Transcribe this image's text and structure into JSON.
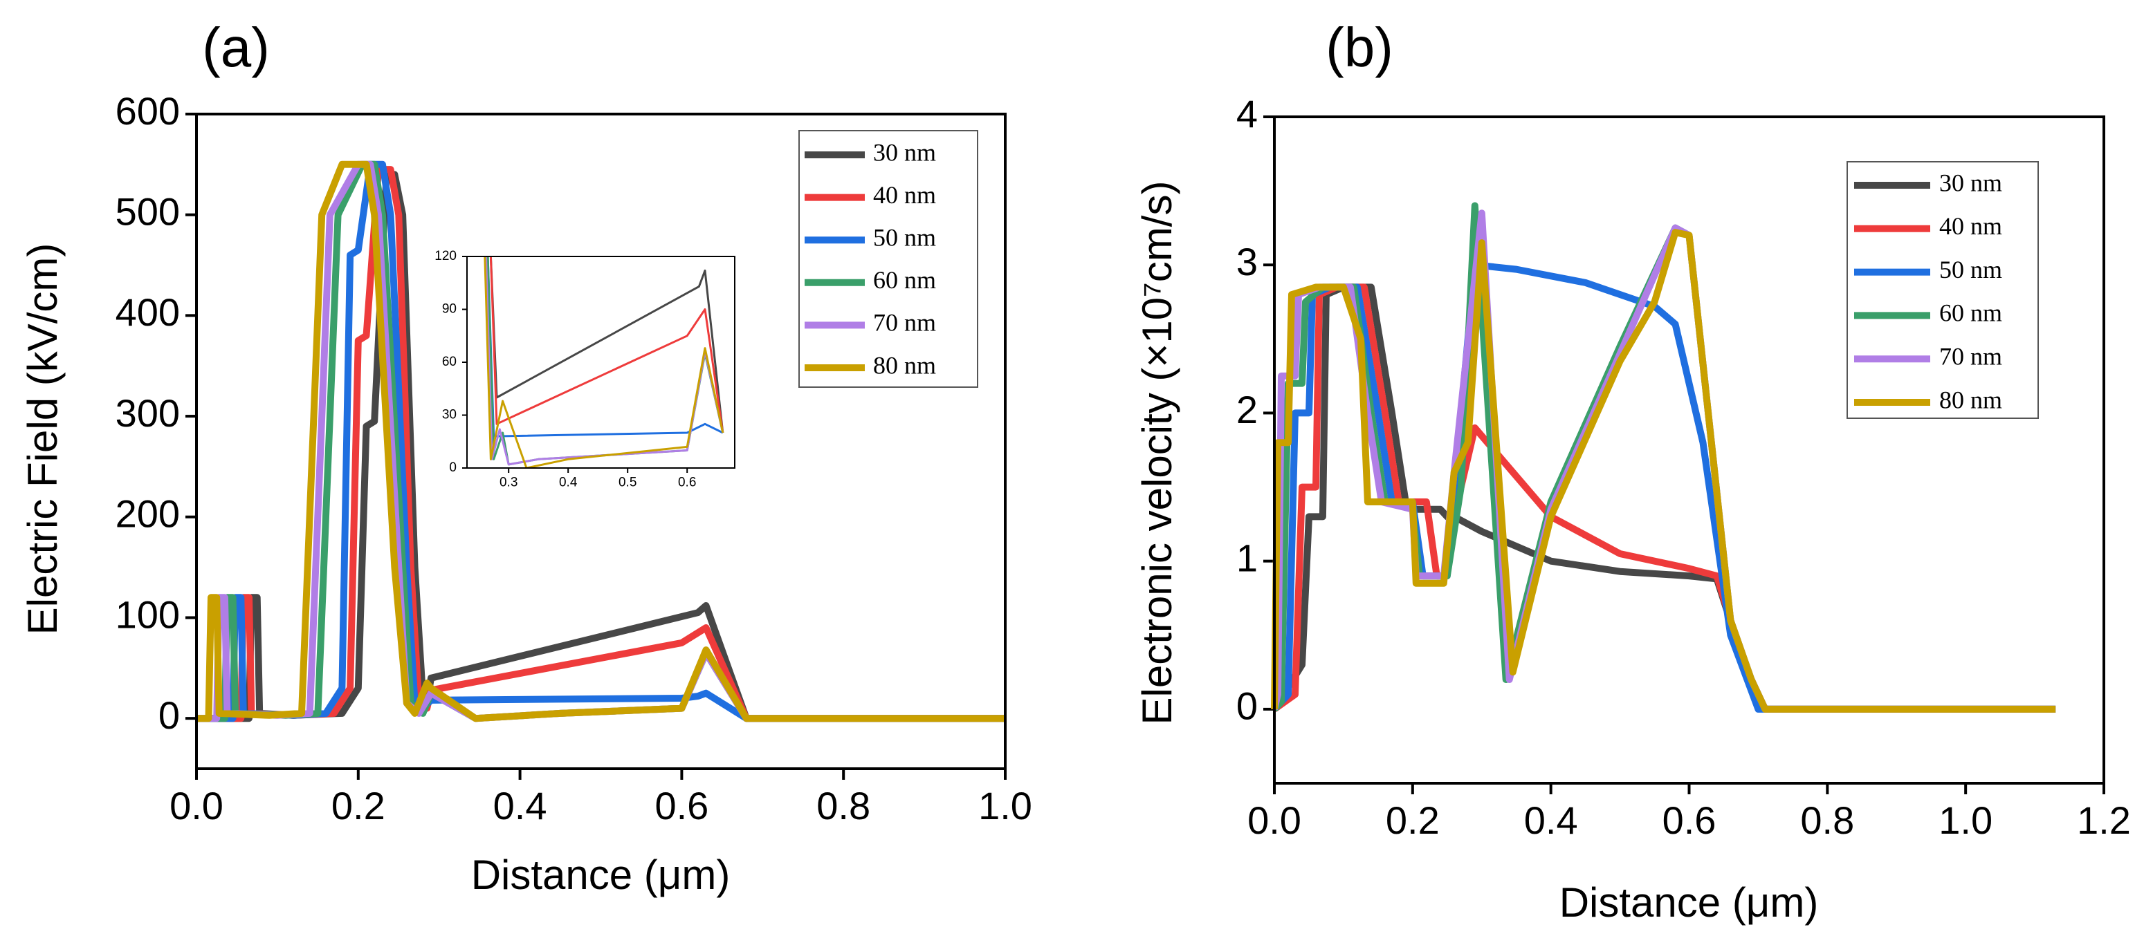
{
  "chart_data": [
    {
      "type": "line",
      "panel_label": "(a)",
      "xlabel": "Distance (μm)",
      "ylabel": "Electric Field (kV/cm)",
      "xlim": [
        0,
        1
      ],
      "ylim": [
        -50,
        600
      ],
      "xticks": [
        {
          "value": 0,
          "label": "0.0"
        },
        0.2,
        0.4,
        0.6,
        0.8,
        {
          "value": 1,
          "label": "1.0"
        }
      ],
      "yticks": [
        0,
        100,
        200,
        300,
        400,
        500,
        600
      ],
      "legend": "upper right",
      "series": [
        {
          "name": "30 nm",
          "color": "#474747",
          "x": [
            0,
            0.065,
            0.068,
            0.075,
            0.078,
            0.12,
            0.18,
            0.2,
            0.21,
            0.22,
            0.235,
            0.245,
            0.255,
            0.27,
            0.28,
            0.285,
            0.29,
            0.62,
            0.63,
            0.68,
            1.0
          ],
          "values": [
            0,
            0,
            120,
            120,
            5,
            3,
            5,
            30,
            290,
            295,
            540,
            540,
            500,
            150,
            20,
            15,
            40,
            105,
            112,
            0,
            0
          ]
        },
        {
          "name": "40 nm",
          "color": "#ee3b3b",
          "x": [
            0,
            0.055,
            0.058,
            0.065,
            0.068,
            0.12,
            0.17,
            0.19,
            0.2,
            0.21,
            0.225,
            0.24,
            0.25,
            0.265,
            0.275,
            0.285,
            0.29,
            0.6,
            0.63,
            0.68,
            1.0
          ],
          "values": [
            0,
            0,
            120,
            120,
            5,
            3,
            5,
            30,
            375,
            380,
            545,
            545,
            500,
            150,
            15,
            10,
            28,
            75,
            90,
            0,
            0
          ]
        },
        {
          "name": "50 nm",
          "color": "#1f6fe0",
          "x": [
            0,
            0.045,
            0.048,
            0.055,
            0.058,
            0.12,
            0.16,
            0.18,
            0.19,
            0.2,
            0.215,
            0.23,
            0.24,
            0.26,
            0.27,
            0.28,
            0.29,
            0.6,
            0.62,
            0.63,
            0.68,
            1.0
          ],
          "values": [
            0,
            0,
            120,
            120,
            5,
            3,
            5,
            30,
            460,
            465,
            550,
            550,
            500,
            150,
            15,
            10,
            18,
            20,
            22,
            25,
            0,
            0
          ]
        },
        {
          "name": "60 nm",
          "color": "#3a9f6a",
          "x": [
            0,
            0.035,
            0.038,
            0.045,
            0.048,
            0.11,
            0.15,
            0.165,
            0.175,
            0.205,
            0.22,
            0.23,
            0.255,
            0.265,
            0.28,
            0.29,
            0.345,
            0.45,
            0.6,
            0.63,
            0.68,
            1.0
          ],
          "values": [
            0,
            0,
            120,
            120,
            5,
            3,
            5,
            300,
            500,
            550,
            550,
            500,
            150,
            15,
            5,
            25,
            0,
            5,
            10,
            65,
            0,
            0
          ]
        },
        {
          "name": "70 nm",
          "color": "#b07ee6",
          "x": [
            0,
            0.025,
            0.028,
            0.035,
            0.038,
            0.1,
            0.14,
            0.155,
            0.165,
            0.2,
            0.215,
            0.225,
            0.25,
            0.26,
            0.275,
            0.29,
            0.345,
            0.45,
            0.6,
            0.63,
            0.68,
            1.0
          ],
          "values": [
            0,
            0,
            120,
            120,
            5,
            3,
            5,
            300,
            500,
            550,
            550,
            500,
            150,
            15,
            5,
            25,
            0,
            5,
            10,
            65,
            0,
            0
          ]
        },
        {
          "name": "80 nm",
          "color": "#c9a000",
          "x": [
            0,
            0.015,
            0.018,
            0.025,
            0.028,
            0.09,
            0.13,
            0.145,
            0.155,
            0.18,
            0.21,
            0.22,
            0.245,
            0.26,
            0.27,
            0.285,
            0.29,
            0.345,
            0.45,
            0.6,
            0.63,
            0.68,
            1.0
          ],
          "values": [
            0,
            0,
            120,
            120,
            5,
            3,
            5,
            300,
            500,
            550,
            550,
            500,
            150,
            15,
            5,
            35,
            30,
            0,
            5,
            10,
            68,
            0,
            0
          ]
        }
      ]
    },
    {
      "type": "line",
      "panel_label": "(b)",
      "xlabel": "Distance (μm)",
      "ylabel": "Electronic velocity (×10⁷cm/s)",
      "xlim": [
        0,
        1.2
      ],
      "ylim": [
        -0.5,
        4
      ],
      "xticks": [
        {
          "value": 0,
          "label": "0.0"
        },
        0.2,
        0.4,
        0.6,
        0.8,
        {
          "value": 1,
          "label": "1.0"
        },
        1.2
      ],
      "yticks": [
        0,
        1,
        2,
        3,
        4
      ],
      "legend": "upper right",
      "series": [
        {
          "name": "30 nm",
          "color": "#474747",
          "x": [
            0,
            0.04,
            0.05,
            0.07,
            0.075,
            0.1,
            0.14,
            0.17,
            0.19,
            0.2,
            0.24,
            0.25,
            0.26,
            0.3,
            0.4,
            0.5,
            0.6,
            0.64,
            0.68,
            0.71,
            1.13
          ],
          "values": [
            0,
            0.3,
            1.3,
            1.3,
            2.8,
            2.85,
            2.85,
            2.0,
            1.4,
            1.35,
            1.35,
            1.3,
            1.3,
            1.2,
            1.0,
            0.93,
            0.9,
            0.88,
            0.3,
            0,
            0
          ]
        },
        {
          "name": "40 nm",
          "color": "#ee3b3b",
          "x": [
            0,
            0.03,
            0.04,
            0.06,
            0.065,
            0.09,
            0.13,
            0.16,
            0.18,
            0.2,
            0.22,
            0.235,
            0.245,
            0.27,
            0.29,
            0.4,
            0.5,
            0.6,
            0.64,
            0.68,
            0.71,
            1.13
          ],
          "values": [
            0,
            0.1,
            1.5,
            1.5,
            2.8,
            2.85,
            2.85,
            2.0,
            1.4,
            1.4,
            1.4,
            0.9,
            0.9,
            1.5,
            1.9,
            1.3,
            1.05,
            0.95,
            0.9,
            0.3,
            0,
            0
          ]
        },
        {
          "name": "50 nm",
          "color": "#1f6fe0",
          "x": [
            0,
            0.02,
            0.03,
            0.05,
            0.055,
            0.08,
            0.12,
            0.15,
            0.17,
            0.2,
            0.215,
            0.225,
            0.25,
            0.27,
            0.29,
            0.35,
            0.45,
            0.55,
            0.58,
            0.62,
            0.66,
            0.7,
            1.13
          ],
          "values": [
            0,
            0.1,
            2.0,
            2.0,
            2.8,
            2.85,
            2.85,
            2.0,
            1.4,
            1.4,
            0.9,
            0.9,
            0.9,
            2.0,
            3.0,
            2.97,
            2.88,
            2.72,
            2.6,
            1.8,
            0.5,
            0,
            0
          ]
        },
        {
          "name": "60 nm",
          "color": "#3a9f6a",
          "x": [
            0,
            0.01,
            0.02,
            0.04,
            0.045,
            0.07,
            0.115,
            0.14,
            0.16,
            0.2,
            0.21,
            0.22,
            0.25,
            0.27,
            0.29,
            0.335,
            0.4,
            0.5,
            0.58,
            0.6,
            0.66,
            0.69,
            0.71,
            1.13
          ],
          "values": [
            0,
            0.05,
            2.2,
            2.2,
            2.75,
            2.85,
            2.85,
            2.0,
            1.4,
            1.35,
            0.9,
            0.9,
            0.9,
            1.5,
            3.4,
            0.2,
            1.4,
            2.45,
            3.25,
            3.2,
            0.6,
            0.2,
            0,
            0
          ]
        },
        {
          "name": "70 nm",
          "color": "#b07ee6",
          "x": [
            0,
            0.005,
            0.01,
            0.03,
            0.035,
            0.065,
            0.11,
            0.135,
            0.155,
            0.2,
            0.205,
            0.215,
            0.245,
            0.26,
            0.3,
            0.34,
            0.4,
            0.5,
            0.58,
            0.6,
            0.66,
            0.69,
            0.71,
            1.13
          ],
          "values": [
            0,
            0.1,
            2.25,
            2.25,
            2.8,
            2.85,
            2.85,
            2.0,
            1.4,
            1.35,
            0.9,
            0.9,
            0.9,
            1.6,
            3.35,
            0.2,
            1.35,
            2.4,
            3.25,
            3.2,
            0.6,
            0.2,
            0,
            0
          ]
        },
        {
          "name": "80 nm",
          "color": "#c9a000",
          "x": [
            0,
            0.005,
            0.02,
            0.025,
            0.06,
            0.1,
            0.125,
            0.135,
            0.2,
            0.205,
            0.245,
            0.26,
            0.28,
            0.3,
            0.345,
            0.4,
            0.5,
            0.55,
            0.58,
            0.6,
            0.66,
            0.69,
            0.71,
            1.13
          ],
          "values": [
            0,
            1.8,
            1.8,
            2.8,
            2.85,
            2.85,
            2.5,
            1.4,
            1.4,
            0.85,
            0.85,
            1.6,
            1.8,
            3.15,
            0.25,
            1.3,
            2.35,
            2.75,
            3.22,
            3.2,
            0.6,
            0.2,
            0,
            0
          ]
        }
      ]
    },
    {
      "type": "line",
      "xlim": [
        0.23,
        0.68
      ],
      "ylim": [
        0,
        120
      ],
      "xticks": [
        0.3,
        0.4,
        0.5,
        0.6
      ],
      "yticks": [
        0,
        30,
        60,
        90,
        120
      ],
      "series": [
        {
          "color": "#474747",
          "x": [
            0.27,
            0.28,
            0.62,
            0.63,
            0.66
          ],
          "values": [
            120,
            40,
            103,
            112,
            20
          ]
        },
        {
          "color": "#ee3b3b",
          "x": [
            0.27,
            0.28,
            0.6,
            0.63,
            0.66
          ],
          "values": [
            120,
            25,
            75,
            90,
            20
          ]
        },
        {
          "color": "#1f6fe0",
          "x": [
            0.265,
            0.275,
            0.6,
            0.63,
            0.66
          ],
          "values": [
            120,
            18,
            20,
            25,
            20
          ]
        },
        {
          "color": "#3a9f6a",
          "x": [
            0.265,
            0.275,
            0.29,
            0.3,
            0.35,
            0.6,
            0.63,
            0.66
          ],
          "values": [
            120,
            5,
            20,
            2,
            5,
            10,
            65,
            20
          ]
        },
        {
          "color": "#b07ee6",
          "x": [
            0.262,
            0.272,
            0.285,
            0.3,
            0.35,
            0.6,
            0.63,
            0.66
          ],
          "values": [
            120,
            5,
            22,
            2,
            5,
            10,
            66,
            20
          ]
        },
        {
          "color": "#c9a000",
          "x": [
            0.26,
            0.27,
            0.29,
            0.33,
            0.4,
            0.6,
            0.63,
            0.66
          ],
          "values": [
            120,
            5,
            38,
            0,
            5,
            12,
            68,
            20
          ]
        }
      ]
    }
  ]
}
